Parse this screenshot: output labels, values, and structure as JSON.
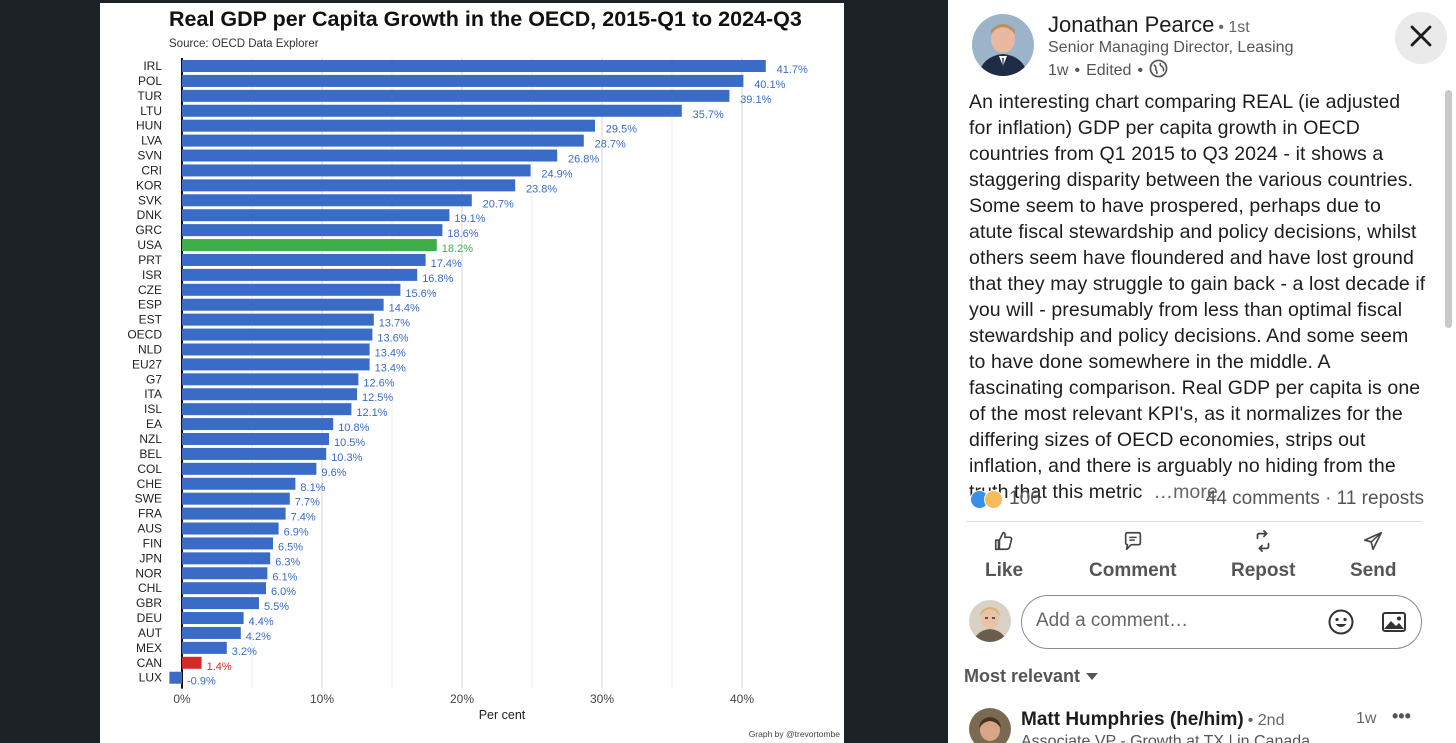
{
  "post": {
    "author_name": "Jonathan Pearce",
    "author_degree": "• 1st",
    "author_title": "Senior Managing Director, Leasing",
    "time": "1w",
    "edited": "Edited",
    "text": "An interesting chart comparing REAL (ie adjusted for inflation) GDP per capita growth in OECD countries from Q1 2015 to Q3 2024 - it shows a staggering disparity between the various countries. Some seem to have prospered, perhaps due to atute fiscal stewardship and policy decisions, whilst others seem have floundered and have lost ground that they may struggle to gain back - a lost decade if you will - presumably from less than optimal fiscal stewardship and policy decisions. And some seem to have done somewhere in the middle. A fascinating comparison. Real GDP per capita is one of the most relevant KPI's, as it normalizes for the differing sizes of OECD economies, strips out inflation, and there is arguably no hiding from the truth that this metric",
    "more_label": "…more",
    "reaction_count": "106",
    "stats": "44 comments · 11 reposts"
  },
  "actions": {
    "like": "Like",
    "comment": "Comment",
    "repost": "Repost",
    "send": "Send"
  },
  "comment_box": {
    "placeholder": "Add a comment…"
  },
  "sort": {
    "label": "Most relevant"
  },
  "top_comment": {
    "name": "Matt Humphries (he/him)",
    "degree": "• 2nd",
    "title": "Associate VP - Growth at TX | in Canada",
    "time": "1w",
    "more": "•••"
  },
  "icons": {
    "close": "close-icon",
    "globe": "globe-icon",
    "like": "thumbs-up-icon",
    "comment": "comment-bubble-icon",
    "repost": "repost-arrows-icon",
    "send": "send-arrow-icon",
    "emoji": "smiley-icon",
    "image": "image-icon",
    "caret": "caret-down-icon"
  },
  "colors": {
    "bar": "#3a6bc7",
    "usa": "#3fae49",
    "can": "#d42a2a",
    "label": "#3a6bc7"
  },
  "chart_data": {
    "type": "bar",
    "orientation": "horizontal",
    "title": "Real GDP per Capita Growth in the OECD, 2015-Q1 to 2024-Q3",
    "subtitle": "Source: OECD Data Explorer",
    "xlabel": "Per cent",
    "credit": "Graph by @trevortombe",
    "xlim": [
      -1,
      44
    ],
    "xticks": [
      0,
      10,
      20,
      30,
      40
    ],
    "xtick_labels": [
      "0%",
      "10%",
      "20%",
      "30%",
      "40%"
    ],
    "grid": true,
    "categories": [
      "IRL",
      "POL",
      "TUR",
      "LTU",
      "HUN",
      "LVA",
      "SVN",
      "CRI",
      "KOR",
      "SVK",
      "DNK",
      "GRC",
      "USA",
      "PRT",
      "ISR",
      "CZE",
      "ESP",
      "EST",
      "OECD",
      "NLD",
      "EU27",
      "G7",
      "ITA",
      "ISL",
      "EA",
      "NZL",
      "BEL",
      "COL",
      "CHE",
      "SWE",
      "FRA",
      "AUS",
      "FIN",
      "JPN",
      "NOR",
      "CHL",
      "GBR",
      "DEU",
      "AUT",
      "MEX",
      "CAN",
      "LUX"
    ],
    "values": [
      41.7,
      40.1,
      39.1,
      35.7,
      29.5,
      28.7,
      26.8,
      24.9,
      23.8,
      20.7,
      19.1,
      18.6,
      18.2,
      17.4,
      16.8,
      15.6,
      14.4,
      13.7,
      13.6,
      13.4,
      13.4,
      12.6,
      12.5,
      12.1,
      10.8,
      10.5,
      10.3,
      9.6,
      8.1,
      7.7,
      7.4,
      6.9,
      6.5,
      6.3,
      6.1,
      6.0,
      5.5,
      4.4,
      4.2,
      3.2,
      1.4,
      -0.9
    ],
    "value_labels": [
      "41.7%",
      "40.1%",
      "39.1%",
      "35.7%",
      "29.5%",
      "28.7%",
      "26.8%",
      "24.9%",
      "23.8%",
      "20.7%",
      "19.1%",
      "18.6%",
      "18.2%",
      "17.4%",
      "16.8%",
      "15.6%",
      "14.4%",
      "13.7%",
      "13.6%",
      "13.4%",
      "13.4%",
      "12.6%",
      "12.5%",
      "12.1%",
      "10.8%",
      "10.5%",
      "10.3%",
      "9.6%",
      "8.1%",
      "7.7%",
      "7.4%",
      "6.9%",
      "6.5%",
      "6.3%",
      "6.1%",
      "6.0%",
      "5.5%",
      "4.4%",
      "4.2%",
      "3.2%",
      "1.4%",
      "-0.9%"
    ],
    "highlight": {
      "USA": "#3fae49",
      "CAN": "#d42a2a"
    }
  }
}
